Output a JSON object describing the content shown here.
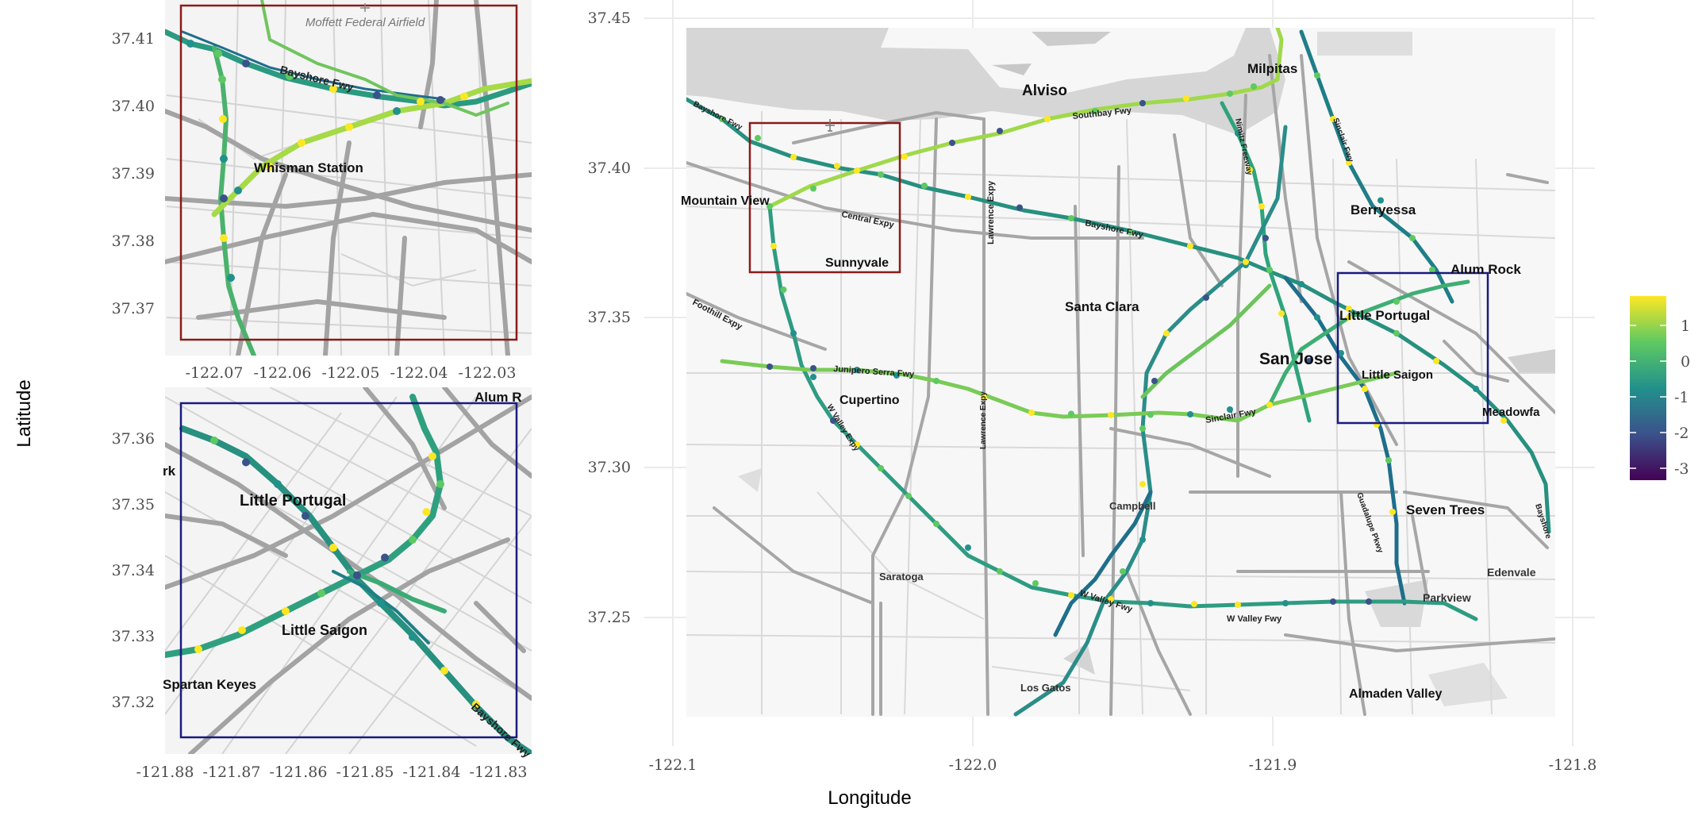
{
  "axis": {
    "x_title": "Longitude",
    "y_title": "Latitude"
  },
  "main_map": {
    "x_ticks": [
      "-122.1",
      "-122.0",
      "-121.9",
      "-121.8"
    ],
    "y_ticks": [
      "37.45",
      "37.40",
      "37.35",
      "37.30",
      "37.25"
    ],
    "places": {
      "alviso": "Alviso",
      "milpitas": "Milpitas",
      "mountain_view": "Mountain View",
      "sunnyvale": "Sunnyvale",
      "berryessa": "Berryessa",
      "alum_rock": "Alum Rock",
      "santa_clara": "Santa Clara",
      "little_portugal": "Little Portugal",
      "san_jose": "San Jose",
      "little_saigon": "Little Saigon",
      "cupertino": "Cupertino",
      "meadowfair": "Meadowfa",
      "campbell": "Campbell",
      "seven_trees": "Seven Trees",
      "edenvale": "Edenvale",
      "saratoga": "Saratoga",
      "parkview": "Parkview",
      "los_gatos": "Los Gatos",
      "almaden_valley": "Almaden Valley"
    },
    "roads": {
      "southbay_fwy": "Southbay Fwy",
      "bayshore_fwy": "Bayshore Fwy",
      "bayshore_fwy_short": "Bayshore Fwy",
      "central_expy": "Central Expy",
      "lawrence_expy": "Lawrence Expy",
      "nimitz_fwy": "Nimitz Freeway",
      "sinclair_fwy": "Sinclair Fwy",
      "foothill_expy": "Foothill Expy",
      "junipero_serra": "Junipero Serra Fwy",
      "w_valley_expy": "W Valley Expy",
      "sinclair_fwy_2": "Sinclair Fwy",
      "w_valley_fwy": "W Valley Fwy",
      "w_valley_fwy_2": "W Valley Fwy",
      "guadalupe_pkwy": "Guadalupe Pkwy",
      "bayshore_south": "Bayshore"
    }
  },
  "inset_top": {
    "x_ticks": [
      "-122.07",
      "-122.06",
      "-122.05",
      "-122.04",
      "-122.03"
    ],
    "y_ticks": [
      "37.41",
      "37.40",
      "37.39",
      "37.38",
      "37.37"
    ],
    "airfield": "Moffett Federal Airfield",
    "place": "Whisman Station",
    "road": "Bayshore Fwy",
    "frame_color": "#8b1a1a"
  },
  "inset_bottom": {
    "x_ticks": [
      "-121.88",
      "-121.87",
      "-121.86",
      "-121.85",
      "-121.84",
      "-121.83"
    ],
    "y_ticks": [
      "37.36",
      "37.35",
      "37.34",
      "37.33",
      "37.32"
    ],
    "places": {
      "little_portugal": "Little Portugal",
      "little_saigon": "Little Saigon",
      "spartan_keyes": "Spartan Keyes",
      "alum_rock": "Alum R",
      "rk": "rk"
    },
    "road": "Bayshore Fwy",
    "frame_color": "#1a1a80"
  },
  "legend": {
    "ticks": [
      "1",
      "0",
      "-1",
      "-2",
      "-3"
    ],
    "colors": [
      "#fde725",
      "#5ec962",
      "#21918c",
      "#3b528b",
      "#440154"
    ]
  }
}
